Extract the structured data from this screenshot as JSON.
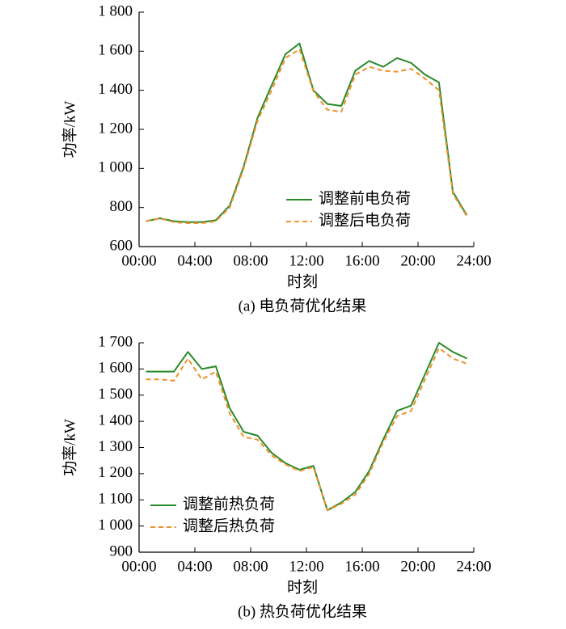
{
  "chart_data": [
    {
      "type": "line",
      "caption": "(a)  电负荷优化结果",
      "xlabel": "时刻",
      "ylabel": "功率/kW",
      "x": [
        0.5,
        1.5,
        2.5,
        3.5,
        4.5,
        5.5,
        6.5,
        7.5,
        8.5,
        9.5,
        10.5,
        11.5,
        12.5,
        13.5,
        14.5,
        15.5,
        16.5,
        17.5,
        18.5,
        19.5,
        20.5,
        21.5,
        22.5,
        23.5
      ],
      "series": [
        {
          "name": "调整前电负荷",
          "color": "#2a8a2a",
          "style": "solid",
          "values": [
            730,
            745,
            730,
            725,
            725,
            735,
            810,
            1010,
            1260,
            1425,
            1585,
            1640,
            1400,
            1330,
            1320,
            1500,
            1550,
            1520,
            1565,
            1540,
            1480,
            1440,
            880,
            760
          ]
        },
        {
          "name": "调整后电负荷",
          "color": "#f0902a",
          "style": "dashed",
          "values": [
            730,
            745,
            725,
            720,
            720,
            730,
            800,
            1000,
            1245,
            1400,
            1565,
            1610,
            1395,
            1300,
            1290,
            1480,
            1520,
            1500,
            1495,
            1510,
            1460,
            1400,
            870,
            755
          ]
        }
      ],
      "xlim": [
        0,
        24
      ],
      "xticks": [
        {
          "value": 0,
          "label": "00:00"
        },
        {
          "value": 4,
          "label": "04:00"
        },
        {
          "value": 8,
          "label": "08:00"
        },
        {
          "value": 12,
          "label": "12:00"
        },
        {
          "value": 16,
          "label": "16:00"
        },
        {
          "value": 20,
          "label": "20:00"
        },
        {
          "value": 24,
          "label": "24:00"
        }
      ],
      "ylim": [
        600,
        1800
      ],
      "yticks": [
        600,
        800,
        {
          "value": 1000,
          "label": "1 000"
        },
        {
          "value": 1200,
          "label": "1 200"
        },
        {
          "value": 1400,
          "label": "1 400"
        },
        {
          "value": 1600,
          "label": "1 600"
        },
        {
          "value": 1800,
          "label": "1 800"
        }
      ],
      "legend": "lower center",
      "grid": false
    },
    {
      "type": "line",
      "caption": "(b)  热负荷优化结果",
      "xlabel": "时刻",
      "ylabel": "功率/kW",
      "x": [
        0.5,
        1.5,
        2.5,
        3.5,
        4.5,
        5.5,
        6.5,
        7.5,
        8.5,
        9.5,
        10.5,
        11.5,
        12.5,
        13.5,
        14.5,
        15.5,
        16.5,
        17.5,
        18.5,
        19.5,
        20.5,
        21.5,
        22.5,
        23.5
      ],
      "series": [
        {
          "name": "调整前热负荷",
          "color": "#2a8a2a",
          "style": "solid",
          "values": [
            1590,
            1590,
            1590,
            1665,
            1600,
            1610,
            1450,
            1360,
            1345,
            1280,
            1240,
            1215,
            1230,
            1060,
            1090,
            1130,
            1210,
            1330,
            1440,
            1460,
            1580,
            1700,
            1665,
            1640
          ]
        },
        {
          "name": "调整后热负荷",
          "color": "#f0902a",
          "style": "dashed",
          "values": [
            1560,
            1560,
            1555,
            1640,
            1560,
            1590,
            1430,
            1340,
            1330,
            1270,
            1235,
            1210,
            1225,
            1060,
            1085,
            1120,
            1200,
            1320,
            1420,
            1440,
            1560,
            1680,
            1640,
            1620
          ]
        }
      ],
      "xlim": [
        0,
        24
      ],
      "xticks": [
        {
          "value": 0,
          "label": "00:00"
        },
        {
          "value": 4,
          "label": "04:00"
        },
        {
          "value": 8,
          "label": "08:00"
        },
        {
          "value": 12,
          "label": "12:00"
        },
        {
          "value": 16,
          "label": "16:00"
        },
        {
          "value": 20,
          "label": "20:00"
        },
        {
          "value": 24,
          "label": "24:00"
        }
      ],
      "ylim": [
        900,
        1700
      ],
      "yticks": [
        900,
        {
          "value": 1000,
          "label": "1 000"
        },
        {
          "value": 1100,
          "label": "1 100"
        },
        {
          "value": 1200,
          "label": "1 200"
        },
        {
          "value": 1300,
          "label": "1 300"
        },
        {
          "value": 1400,
          "label": "1 400"
        },
        {
          "value": 1500,
          "label": "1 500"
        },
        {
          "value": 1600,
          "label": "1 600"
        },
        {
          "value": 1700,
          "label": "1 700"
        }
      ],
      "legend": "lower left",
      "grid": false
    }
  ]
}
